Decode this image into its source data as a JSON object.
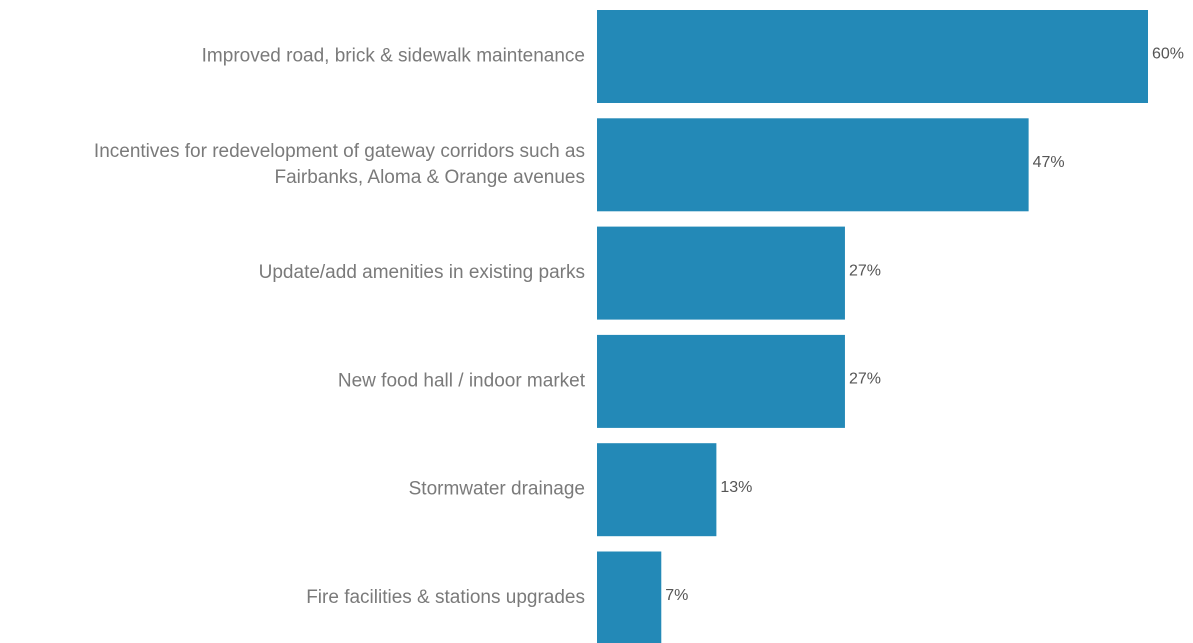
{
  "chart_data": {
    "type": "bar",
    "orientation": "horizontal",
    "categories": [
      [
        "Improved road, brick & sidewalk maintenance"
      ],
      [
        "Incentives for redevelopment of gateway corridors such as",
        "Fairbanks, Aloma & Orange avenues"
      ],
      [
        "Update/add amenities in existing parks"
      ],
      [
        "New food hall / indoor market"
      ],
      [
        "Stormwater drainage"
      ],
      [
        "Fire facilities & stations upgrades"
      ]
    ],
    "values": [
      60,
      47,
      27,
      27,
      13,
      7
    ],
    "value_labels": [
      "60%",
      "47%",
      "27%",
      "27%",
      "13%",
      "7%"
    ],
    "xlim": [
      0,
      60
    ],
    "grid": false,
    "bar_color": "#2389b7"
  }
}
